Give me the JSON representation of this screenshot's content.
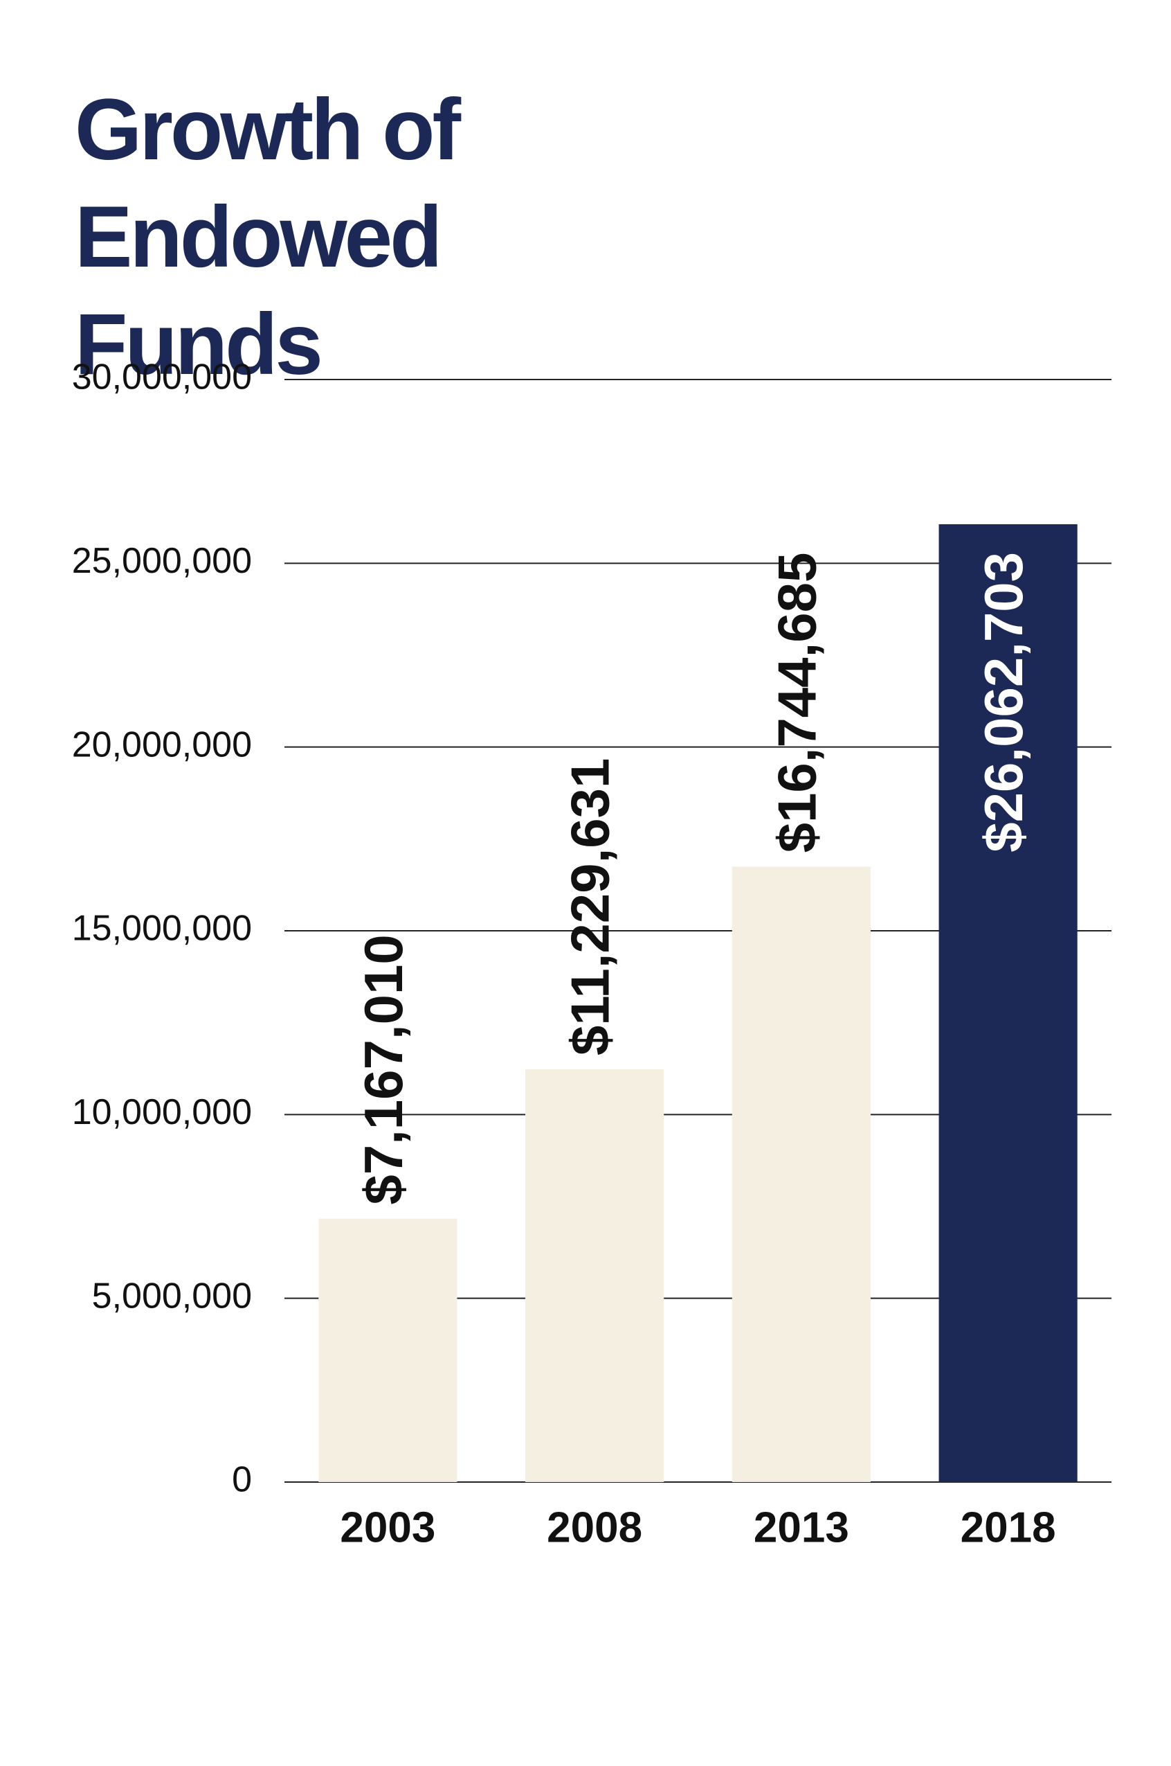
{
  "chart_data": {
    "type": "bar",
    "title": "Growth of Endowed Funds",
    "categories": [
      "2003",
      "2008",
      "2013",
      "2018"
    ],
    "values": [
      7167010,
      11229631,
      16744685,
      26062703
    ],
    "value_labels": [
      "$7,167,010",
      "$11,229,631",
      "$16,744,685",
      "$26,062,703"
    ],
    "colors": [
      "#f5efe1",
      "#f5efe1",
      "#f5efe1",
      "#1c2957"
    ],
    "ylim": [
      0,
      30000000
    ],
    "yticks": [
      0,
      {
        "value": 5000000,
        "label": "5,000,000"
      },
      {
        "value": 10000000,
        "label": "10,000,000"
      },
      {
        "value": 15000000,
        "label": "15,000,000"
      },
      {
        "value": 20000000,
        "label": "20,000,000"
      },
      {
        "value": 25000000,
        "label": "25,000,000"
      },
      {
        "value": 30000000,
        "label": "30,000,000"
      }
    ],
    "grid": true
  }
}
